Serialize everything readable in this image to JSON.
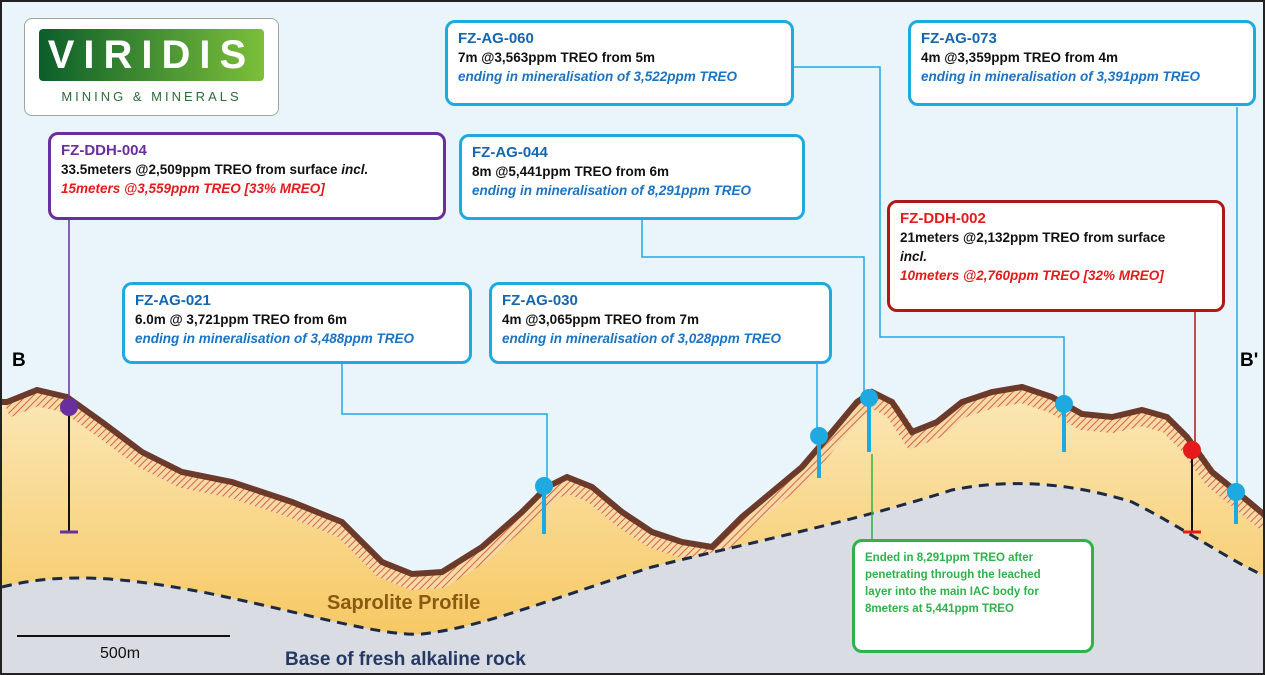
{
  "logo": {
    "name": "VIRIDIS",
    "tagline": "MINING & MINERALS"
  },
  "section": {
    "start": "B",
    "end": "B'"
  },
  "callouts": [
    {
      "title": "FZ-DDH-004",
      "lines": [
        "33.5meters @2,509ppm TREO from surface",
        "incl.",
        "15meters @3,559ppm TREO [33% MREO]"
      ]
    },
    {
      "title": "FZ-AG-021",
      "lines": [
        "6.0m @ 3,721ppm TREO from 6m",
        "ending in mineralisation of 3,488ppm TREO"
      ]
    },
    {
      "title": "FZ-AG-030",
      "lines": [
        "4m @3,065ppm TREO from 7m",
        "ending in mineralisation of 3,028ppm TREO"
      ]
    },
    {
      "title": "FZ-AG-044",
      "lines": [
        "8m @5,441ppm TREO from 6m",
        "ending in mineralisation of 8,291ppm TREO"
      ]
    },
    {
      "title": "FZ-AG-060",
      "lines": [
        "7m @3,563ppm TREO from 5m",
        "ending in mineralisation of 3,522ppm TREO"
      ]
    },
    {
      "title": "FZ-AG-073",
      "lines": [
        "4m @3,359ppm TREO from 4m",
        "ending in mineralisation of 3,391ppm TREO"
      ]
    },
    {
      "title": "FZ-DDH-002",
      "lines": [
        "21meters @2,132ppm TREO from surface",
        "incl.",
        "10meters @2,760ppm TREO [32% MREO]"
      ]
    }
  ],
  "note": {
    "lines": [
      "Ended in 8,291ppm TREO after",
      "penetrating through the leached",
      "layer into the main IAC body for",
      "8meters at 5,441ppm TREO"
    ]
  },
  "layers": {
    "saprolite": "Saprolite Profile",
    "base": "Base of fresh alkaline rock"
  },
  "scale": "500m"
}
